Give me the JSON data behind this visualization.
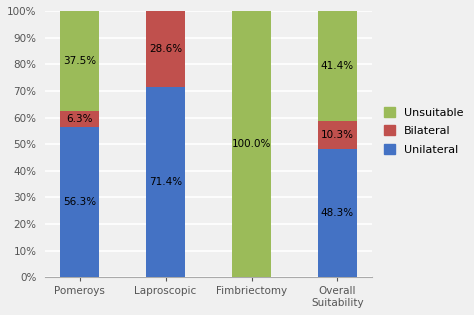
{
  "categories": [
    "Pomeroys",
    "Laproscopic",
    "Fimbriectomy",
    "Overall\nSuitability"
  ],
  "unilateral": [
    56.3,
    71.4,
    0.0,
    48.3
  ],
  "bilateral": [
    6.3,
    28.6,
    0.0,
    10.3
  ],
  "unsuitable": [
    37.5,
    0.0,
    100.0,
    41.4
  ],
  "unilateral_labels": [
    "56.3%",
    "71.4%",
    "",
    "48.3%"
  ],
  "bilateral_labels": [
    "6.3%",
    "28.6%",
    "",
    "10.3%"
  ],
  "unsuitable_labels": [
    "37.5%",
    "",
    "100.0%",
    "41.4%"
  ],
  "color_unilateral": "#4472C4",
  "color_bilateral": "#C0504D",
  "color_unsuitable": "#9BBB59",
  "legend_labels": [
    "Unsuitable",
    "Bilateral",
    "Unilateral"
  ],
  "yticks": [
    0,
    10,
    20,
    30,
    40,
    50,
    60,
    70,
    80,
    90,
    100
  ],
  "ytick_labels": [
    "0%",
    "10%",
    "20%",
    "30%",
    "40%",
    "50%",
    "60%",
    "70%",
    "80%",
    "90%",
    "100%"
  ],
  "bar_width": 0.45,
  "background_color": "#F0F0F0",
  "plot_area_color": "#F0F0F0",
  "label_fontsize": 7.5,
  "tick_fontsize": 7.5,
  "legend_fontsize": 8,
  "grid_color": "#FFFFFF",
  "grid_linewidth": 1.2
}
